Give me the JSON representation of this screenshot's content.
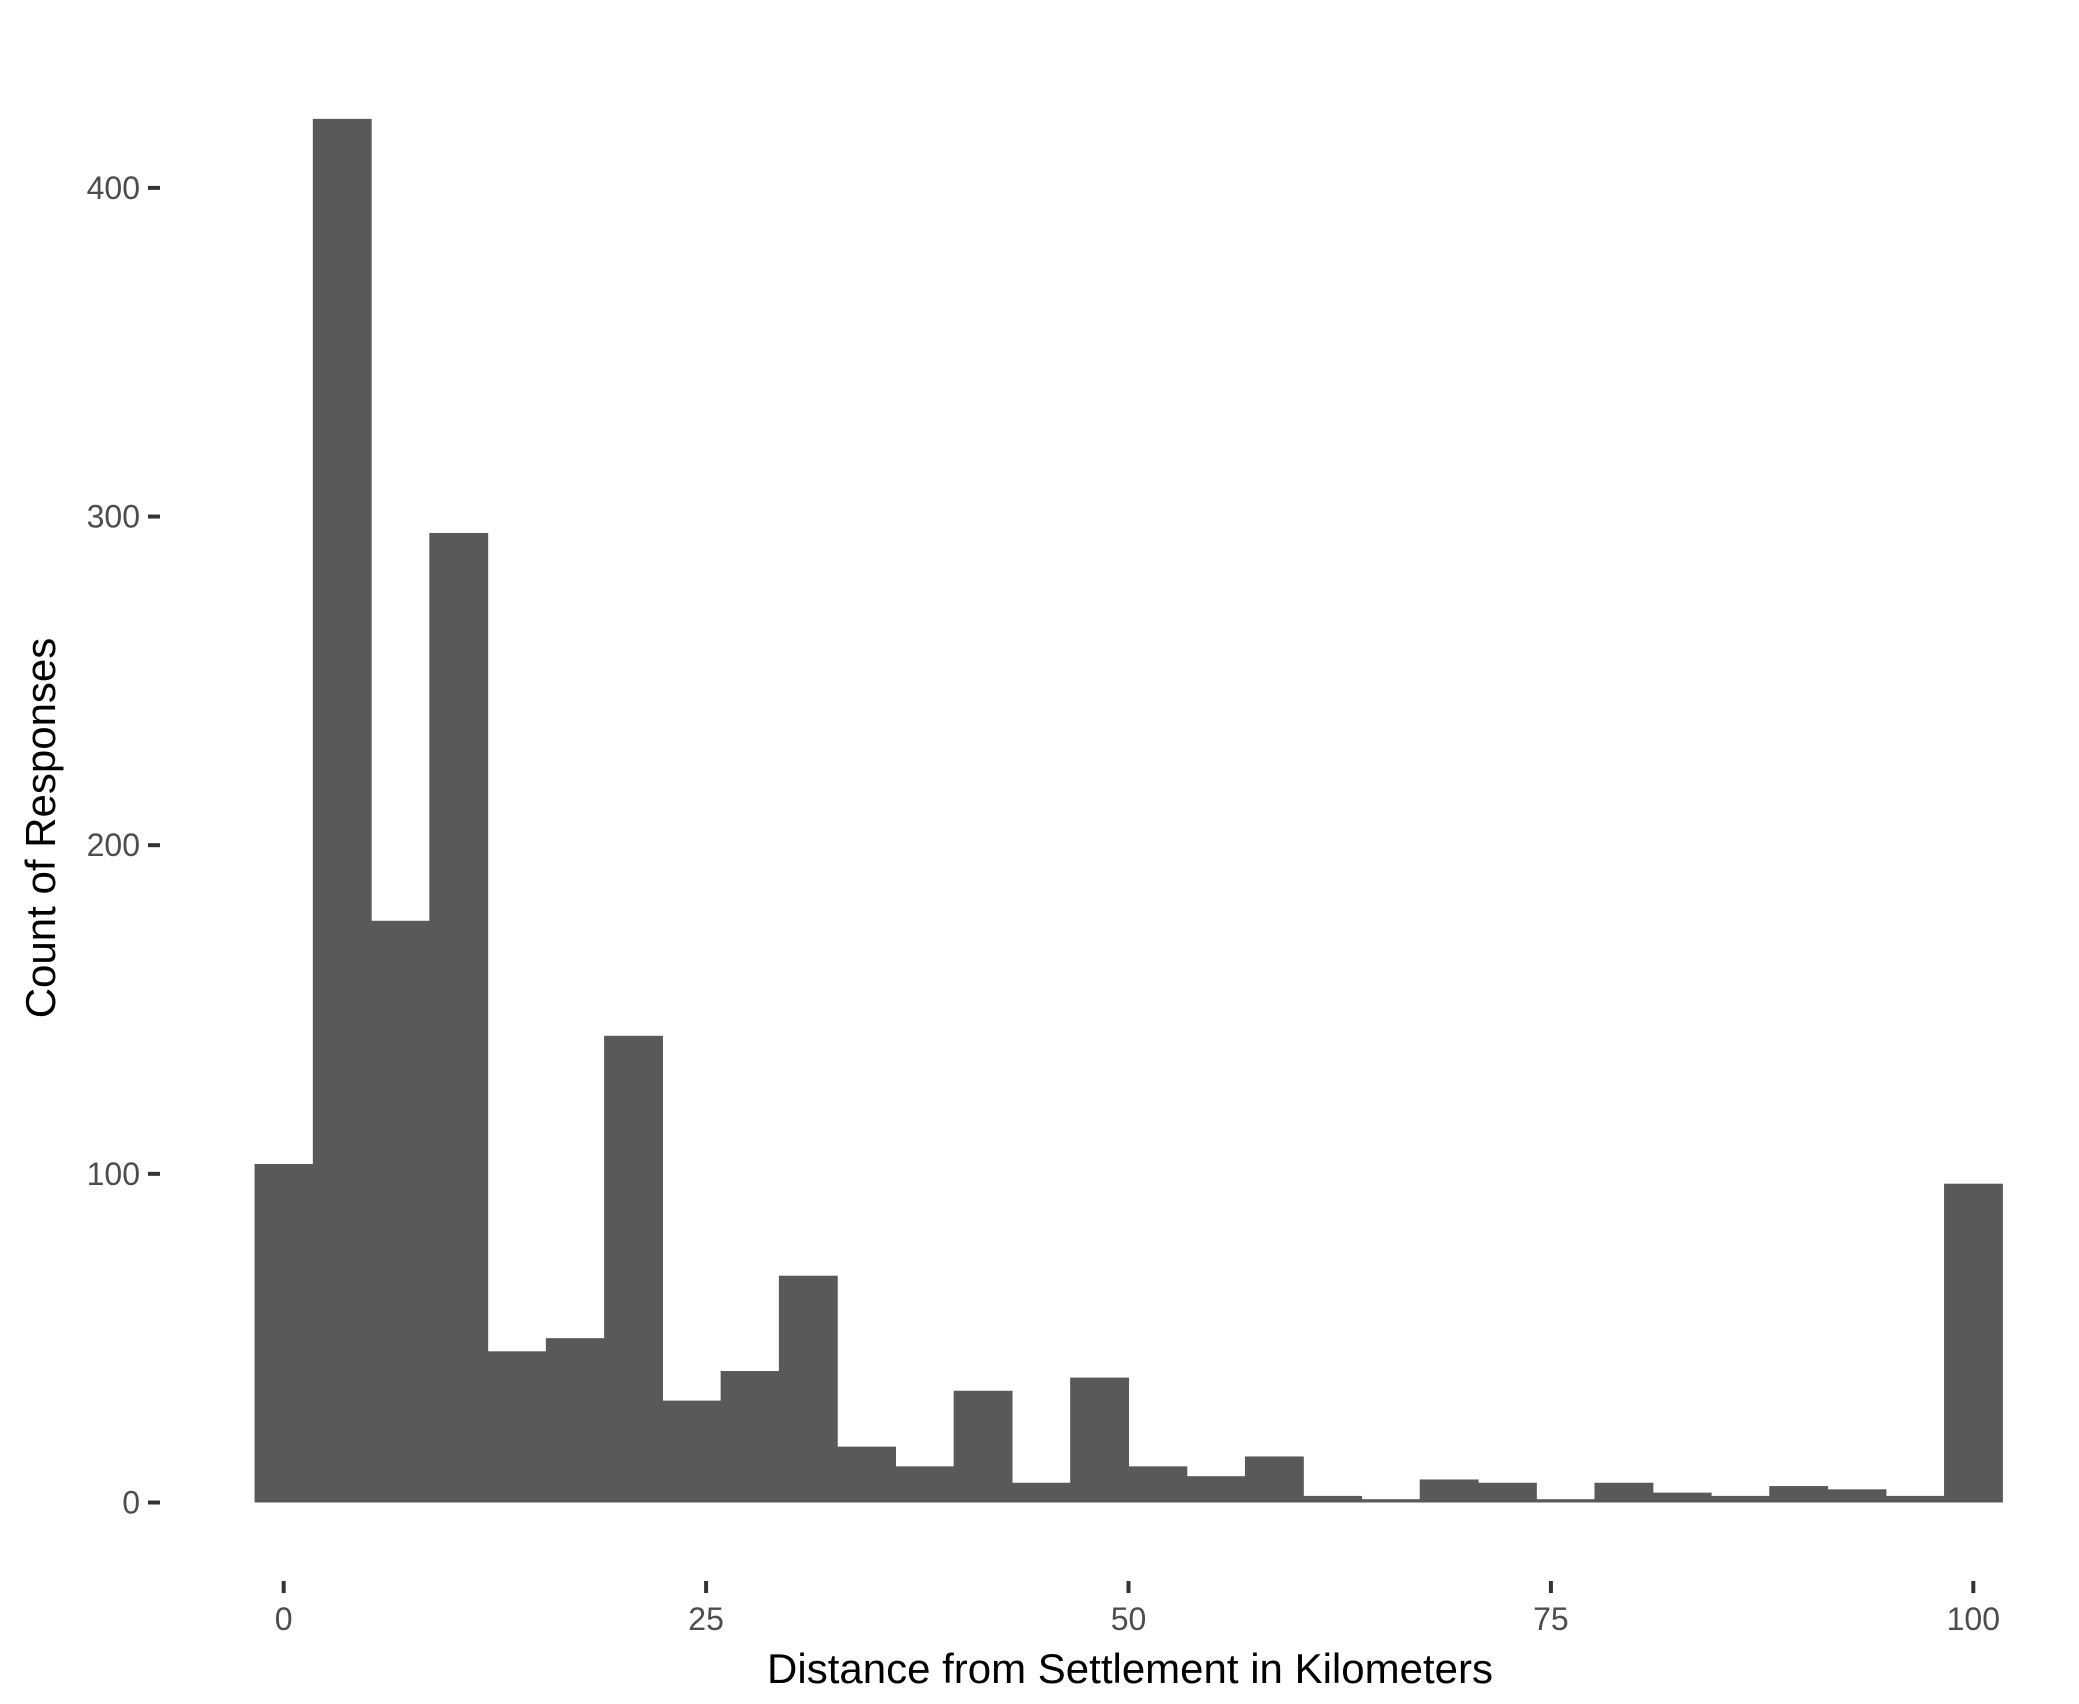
{
  "chart_data": {
    "type": "bar",
    "subtype": "histogram",
    "title": "",
    "xlabel": "Distance from Settlement in Kilometers",
    "ylabel": "Count of Responses",
    "bin_width": 3.448,
    "bin_start": -1.724,
    "values": [
      103,
      421,
      177,
      295,
      46,
      50,
      142,
      31,
      40,
      69,
      17,
      11,
      34,
      6,
      38,
      11,
      8,
      14,
      2,
      1,
      7,
      6,
      1,
      6,
      3,
      2,
      5,
      4,
      2,
      97
    ],
    "xlim": [
      -3.0,
      103.0
    ],
    "ylim": [
      -17.5,
      445
    ],
    "xticks": [
      0,
      25,
      50,
      75,
      100
    ],
    "xtick_labels": [
      "0",
      "25",
      "50",
      "75",
      "100"
    ],
    "yticks": [
      0,
      100,
      200,
      300,
      400
    ],
    "ytick_labels": [
      "0",
      "100",
      "200",
      "300",
      "400"
    ],
    "grid": false,
    "legend": "none",
    "colors": {
      "bar": "#595959",
      "tick_label": "#4d4d4d",
      "tick": "#333333",
      "axis_title": "#000000",
      "background": "#ffffff"
    }
  }
}
